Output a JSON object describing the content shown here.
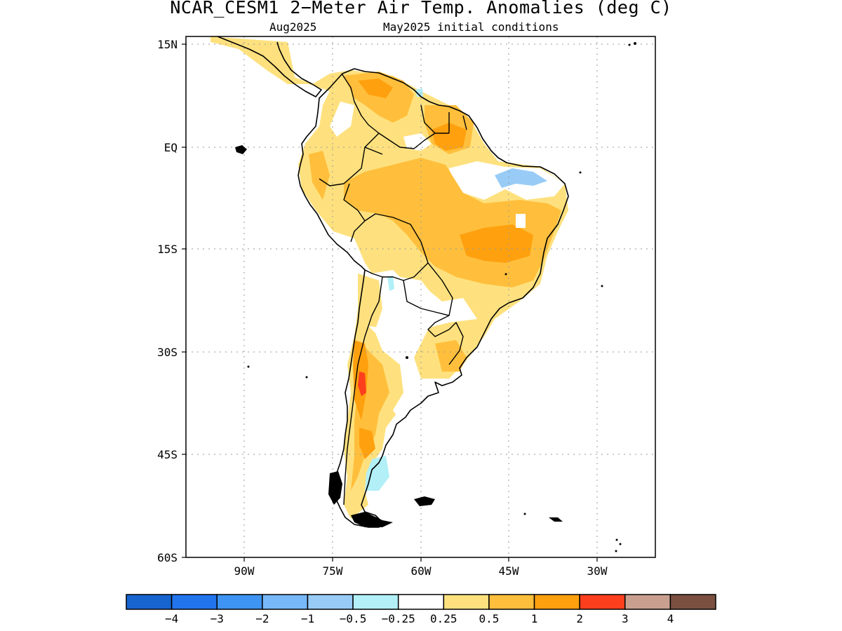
{
  "title": "NCAR_CESM1 2−Meter Air Temp. Anomalies (deg C)",
  "subtitle": {
    "valid": "Aug2025",
    "init": "May2025 initial conditions"
  },
  "map": {
    "lat_ticks": [
      "15N",
      "EQ",
      "15S",
      "30S",
      "45S",
      "60S"
    ],
    "lon_ticks": [
      "90W",
      "75W",
      "60W",
      "45W",
      "30W"
    ],
    "extent": {
      "lon": [
        -100,
        -20
      ],
      "lat": [
        -60,
        16
      ]
    }
  },
  "colorbar": {
    "colors": [
      "#1764cf",
      "#2274ec",
      "#3d94f2",
      "#77b8f8",
      "#98ccf7",
      "#b2eff7",
      "#ffffff",
      "#fee17e",
      "#ffbf3c",
      "#ffa00f",
      "#fd3f1e",
      "#c9a090",
      "#7b5040"
    ],
    "labels": [
      "−4",
      "−3",
      "−2",
      "−1",
      "−0.5",
      "−0.25",
      "0.25",
      "0.5",
      "1",
      "2",
      "3",
      "4"
    ]
  }
}
